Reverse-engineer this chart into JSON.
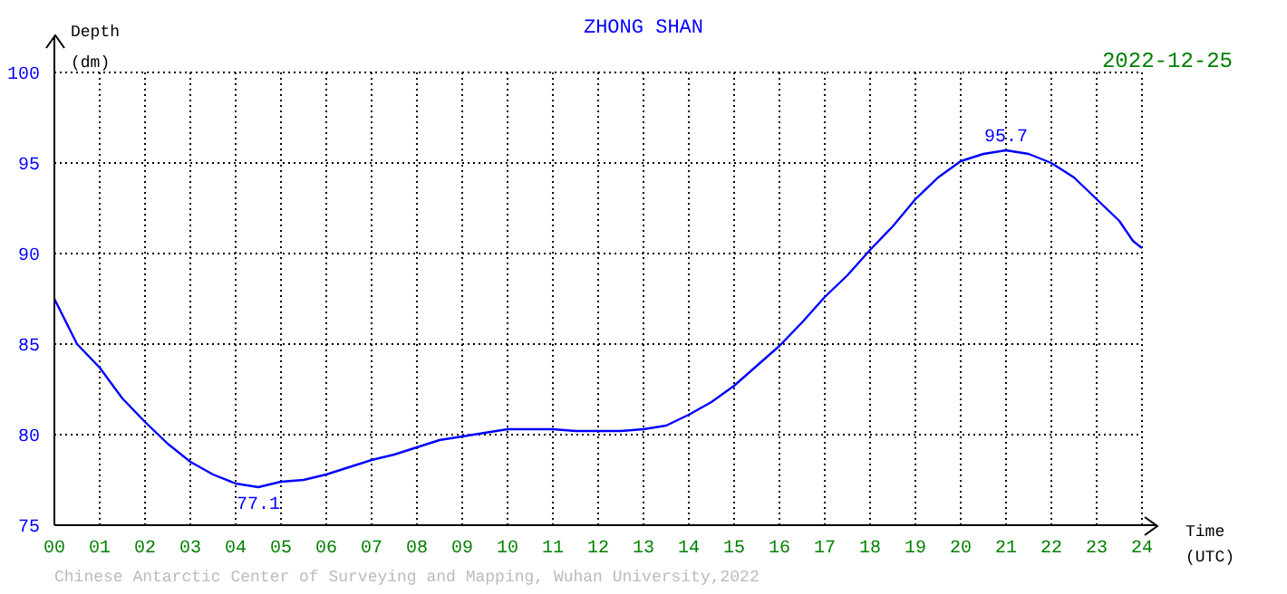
{
  "chart_data": {
    "type": "line",
    "title": "ZHONG SHAN",
    "subtitle": "2022-12-25",
    "xlabel": "Time (UTC)",
    "ylabel": "Depth (dm)",
    "x": [
      0,
      0.5,
      1,
      1.5,
      2,
      2.5,
      3,
      3.5,
      4,
      4.5,
      5,
      5.5,
      6,
      6.5,
      7,
      7.5,
      8,
      8.5,
      9,
      9.5,
      10,
      10.5,
      11,
      11.5,
      12,
      12.5,
      13,
      13.5,
      14,
      14.5,
      15,
      15.5,
      16,
      16.5,
      17,
      17.5,
      18,
      18.5,
      19,
      19.5,
      20,
      20.5,
      21,
      21.5,
      22,
      22.5,
      23,
      23.5,
      23.8,
      24
    ],
    "series": [
      {
        "color": "#0000ff",
        "values": [
          87.5,
          85.0,
          83.7,
          82.0,
          80.7,
          79.5,
          78.5,
          77.8,
          77.3,
          77.1,
          77.4,
          77.5,
          77.8,
          78.2,
          78.6,
          78.9,
          79.3,
          79.7,
          79.9,
          80.1,
          80.3,
          80.3,
          80.3,
          80.2,
          80.2,
          80.2,
          80.3,
          80.5,
          81.1,
          81.8,
          82.7,
          83.8,
          84.9,
          86.2,
          87.6,
          88.8,
          90.2,
          91.5,
          93.0,
          94.2,
          95.1,
          95.5,
          95.7,
          95.5,
          95.0,
          94.2,
          93.0,
          91.8,
          90.7,
          90.3
        ]
      }
    ],
    "xlim": [
      0,
      24
    ],
    "ylim": [
      75,
      100
    ],
    "xticks": [
      {
        "value": 0,
        "label": "00"
      },
      {
        "value": 1,
        "label": "01"
      },
      {
        "value": 2,
        "label": "02"
      },
      {
        "value": 3,
        "label": "03"
      },
      {
        "value": 4,
        "label": "04"
      },
      {
        "value": 5,
        "label": "05"
      },
      {
        "value": 6,
        "label": "06"
      },
      {
        "value": 7,
        "label": "07"
      },
      {
        "value": 8,
        "label": "08"
      },
      {
        "value": 9,
        "label": "09"
      },
      10,
      11,
      12,
      13,
      14,
      15,
      16,
      17,
      18,
      19,
      20,
      21,
      22,
      23,
      24
    ],
    "yticks": [
      75,
      80,
      85,
      90,
      95,
      100
    ],
    "grid": true,
    "marker": "none",
    "line_style": "solid",
    "annotations": [
      {
        "text": "77.1",
        "x": 4.5,
        "y": 77.1
      },
      {
        "text": "95.7",
        "x": 21,
        "y": 95.7
      },
      "Chinese Antarctic Center of Surveying and Mapping, Wuhan University,2022"
    ]
  }
}
